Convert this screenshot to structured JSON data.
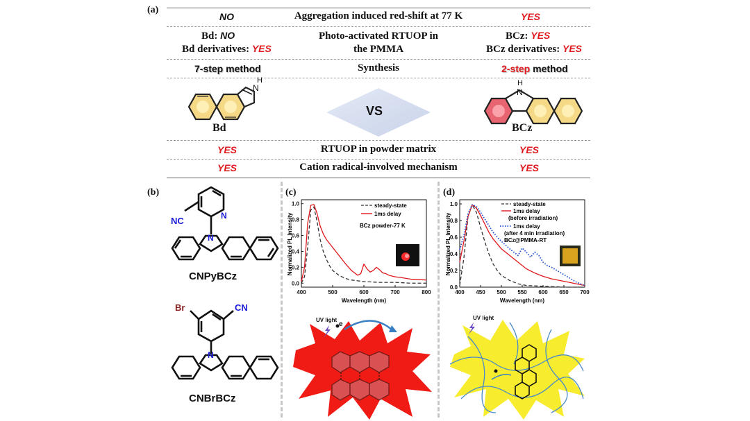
{
  "panel_a": {
    "label": "(a)",
    "rows": [
      {
        "left": "NO",
        "center": "Aggregation induced red-shift at 77 K",
        "right": "YES"
      },
      {
        "left_prefix": "Bd: ",
        "left_value": "NO",
        "left2_prefix": "Bd derivatives: ",
        "left2_value": "YES",
        "center1": "Photo-activated RTUOP in",
        "center2": "the PMMA",
        "right_prefix": "BCz: ",
        "right_value": "YES",
        "right2_prefix": "BCz derivatives: ",
        "right2_value": "YES"
      },
      {
        "left": "7-step method",
        "center": "Synthesis",
        "right_red": "2-step",
        "right_rest": " method"
      },
      {
        "left_mol": "Bd",
        "center": "VS",
        "right_mol": "BCz",
        "right_nh": "H",
        "right_n": "N",
        "left_nh": "H",
        "left_n": "N"
      },
      {
        "left": "YES",
        "center": "RTUOP in powder matrix",
        "right": "YES"
      },
      {
        "left": "YES",
        "center": "Cation radical-involved mechanism",
        "right": "YES"
      }
    ]
  },
  "panel_b": {
    "label": "(b)",
    "mol1": {
      "name": "CNPyBCz",
      "cn": "NC",
      "n_ring": "N",
      "n_core": "N"
    },
    "mol2": {
      "name": "CNBrBCz",
      "br": "Br",
      "cn": "CN",
      "n_core": "N"
    }
  },
  "panel_c": {
    "label": "(c)",
    "chart_data": {
      "type": "line",
      "xlabel": "Wavelength (nm)",
      "ylabel": "Normalized PL Intensity",
      "xlim": [
        400,
        800
      ],
      "ylim": [
        -0.05,
        1.05
      ],
      "xticks": [
        "400",
        "500",
        "600",
        "700",
        "800"
      ],
      "yticks": [
        "0.0",
        "0.2",
        "0.4",
        "0.6",
        "0.8",
        "1.0"
      ],
      "annotation": "BCz powder-77 K",
      "series": [
        {
          "name": "steady-state",
          "style": "dash",
          "color": "#333333",
          "x": [
            400,
            410,
            420,
            430,
            440,
            450,
            460,
            470,
            480,
            490,
            500,
            520,
            540,
            560,
            580,
            600,
            650,
            700,
            750,
            800
          ],
          "y": [
            0.0,
            0.08,
            0.45,
            0.92,
            0.96,
            0.78,
            0.55,
            0.4,
            0.3,
            0.22,
            0.16,
            0.1,
            0.06,
            0.04,
            0.03,
            0.02,
            0.01,
            0.01,
            0.0,
            0.0
          ]
        },
        {
          "name": "1ms delay",
          "style": "solid",
          "color": "#e0191e",
          "x": [
            400,
            410,
            420,
            430,
            440,
            450,
            460,
            470,
            480,
            490,
            500,
            520,
            540,
            560,
            580,
            590,
            600,
            610,
            620,
            630,
            640,
            650,
            660,
            670,
            680,
            700,
            720,
            750,
            800
          ],
          "y": [
            0.02,
            0.2,
            0.75,
            0.98,
            0.99,
            0.88,
            0.72,
            0.62,
            0.55,
            0.5,
            0.45,
            0.35,
            0.25,
            0.16,
            0.1,
            0.12,
            0.24,
            0.18,
            0.14,
            0.16,
            0.2,
            0.17,
            0.13,
            0.12,
            0.1,
            0.08,
            0.07,
            0.05,
            0.04
          ]
        }
      ]
    },
    "uv_label": "UV light",
    "e_label": "e"
  },
  "panel_d": {
    "label": "(d)",
    "chart_data": {
      "type": "line",
      "xlabel": "Wavelength (nm)",
      "ylabel": "Normalized PL Intensity",
      "xlim": [
        400,
        700
      ],
      "ylim": [
        0.0,
        1.05
      ],
      "xticks": [
        "400",
        "450",
        "500",
        "550",
        "600",
        "650",
        "700"
      ],
      "yticks": [
        "0.0",
        "0.2",
        "0.4",
        "0.6",
        "0.8",
        "1.0"
      ],
      "annotation": "BCz@PMMA-RT",
      "series": [
        {
          "name": "steady-state",
          "style": "dash",
          "color": "#333333",
          "x": [
            400,
            410,
            420,
            430,
            440,
            450,
            460,
            470,
            480,
            490,
            500,
            520,
            540,
            560,
            600,
            650,
            700
          ],
          "y": [
            0.02,
            0.35,
            0.85,
            0.99,
            0.9,
            0.72,
            0.55,
            0.4,
            0.28,
            0.2,
            0.14,
            0.08,
            0.04,
            0.02,
            0.01,
            0.0,
            0.0
          ]
        },
        {
          "name": "1ms delay",
          "name2": "(before irradiation)",
          "style": "solid",
          "color": "#e0191e",
          "x": [
            400,
            410,
            420,
            430,
            440,
            450,
            460,
            470,
            480,
            490,
            500,
            520,
            540,
            560,
            580,
            600,
            620,
            640,
            660,
            680,
            700
          ],
          "y": [
            0.3,
            0.55,
            0.85,
            0.99,
            0.95,
            0.86,
            0.76,
            0.66,
            0.58,
            0.52,
            0.46,
            0.38,
            0.3,
            0.22,
            0.17,
            0.13,
            0.1,
            0.08,
            0.06,
            0.04,
            0.02
          ]
        },
        {
          "name": "1ms delay",
          "name2": "(after 4 min irradiation)",
          "style": "dot",
          "color": "#1f4fd1",
          "x": [
            400,
            410,
            420,
            430,
            440,
            450,
            460,
            470,
            480,
            490,
            500,
            520,
            540,
            550,
            560,
            570,
            580,
            590,
            600,
            610,
            620,
            640,
            660,
            680,
            700
          ],
          "y": [
            0.45,
            0.62,
            0.88,
            0.99,
            0.97,
            0.9,
            0.82,
            0.74,
            0.66,
            0.6,
            0.55,
            0.46,
            0.38,
            0.47,
            0.42,
            0.36,
            0.42,
            0.38,
            0.3,
            0.26,
            0.24,
            0.18,
            0.12,
            0.06,
            0.02
          ]
        }
      ]
    },
    "uv_label": "UV light"
  }
}
